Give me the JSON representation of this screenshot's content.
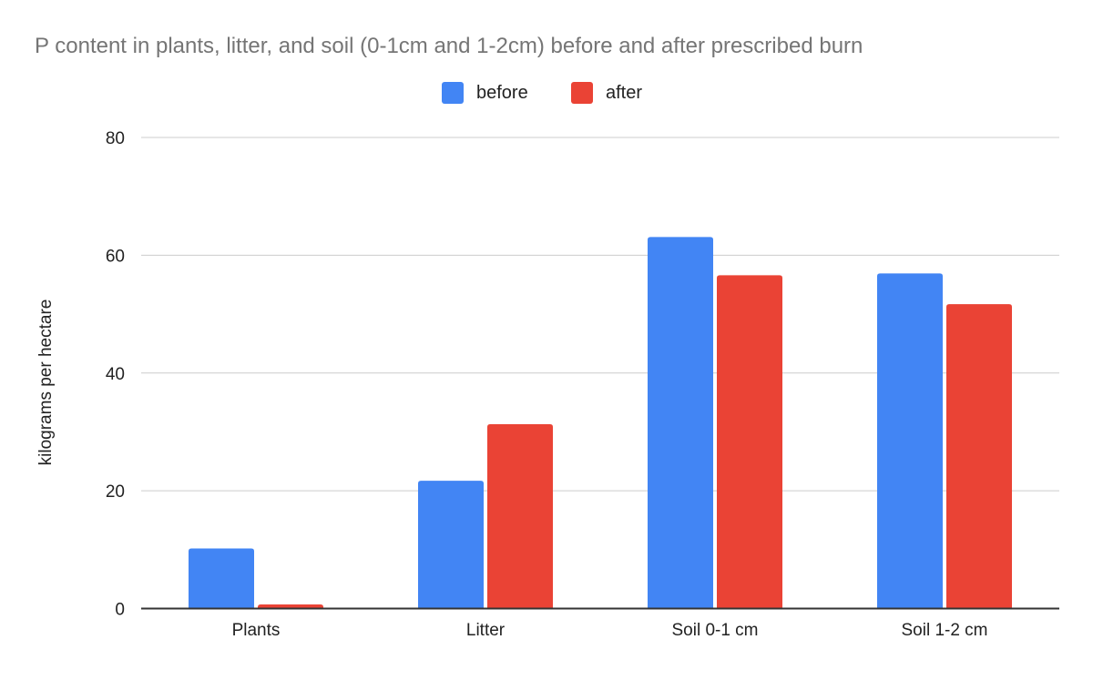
{
  "chart_data": {
    "type": "bar",
    "title": "P content in plants, litter, and soil (0-1cm and 1-2cm) before and after prescribed burn",
    "xlabel": "",
    "ylabel": "kilograms per hectare",
    "ylim": [
      0,
      80
    ],
    "yticks": [
      0,
      20,
      40,
      60,
      80
    ],
    "grid": true,
    "legend_position": "top",
    "categories": [
      "Plants",
      "Litter",
      "Soil 0-1 cm",
      "Soil 1-2 cm"
    ],
    "series": [
      {
        "name": "before",
        "color": "#4285f4",
        "values": [
          10.2,
          21.7,
          63.1,
          56.9
        ]
      },
      {
        "name": "after",
        "color": "#ea4335",
        "values": [
          0.7,
          31.3,
          56.6,
          51.7
        ]
      }
    ]
  }
}
